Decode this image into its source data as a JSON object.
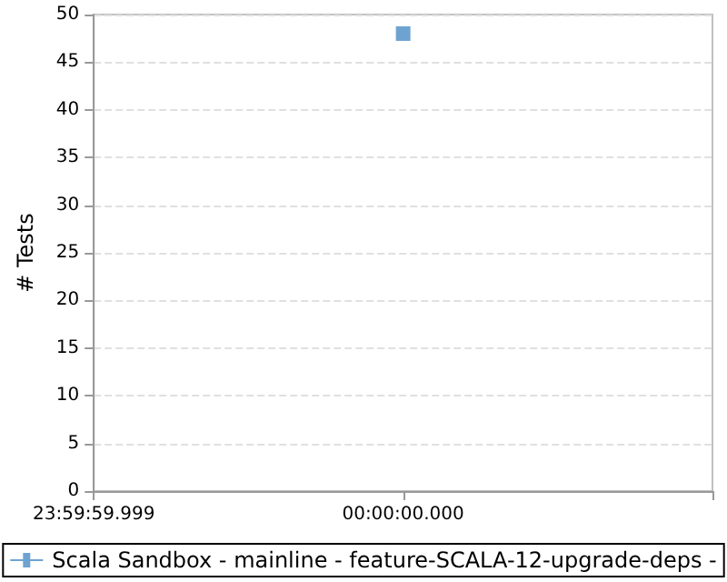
{
  "chart_data": {
    "type": "scatter",
    "ylabel": "# Tests",
    "categories": [
      "23:59:59.999",
      "00:00:00.000",
      null
    ],
    "series": [
      {
        "name": "Scala Sandbox - mainline - feature-SCALA-12-upgrade-deps -",
        "color": "#4a8cc6",
        "values": [
          null,
          48,
          null
        ]
      }
    ],
    "ylim": [
      0,
      50
    ],
    "yticks": [
      0,
      5,
      10,
      15,
      20,
      25,
      30,
      35,
      40,
      45,
      50
    ],
    "grid": "y",
    "legend": "bottom",
    "marker": "square"
  }
}
